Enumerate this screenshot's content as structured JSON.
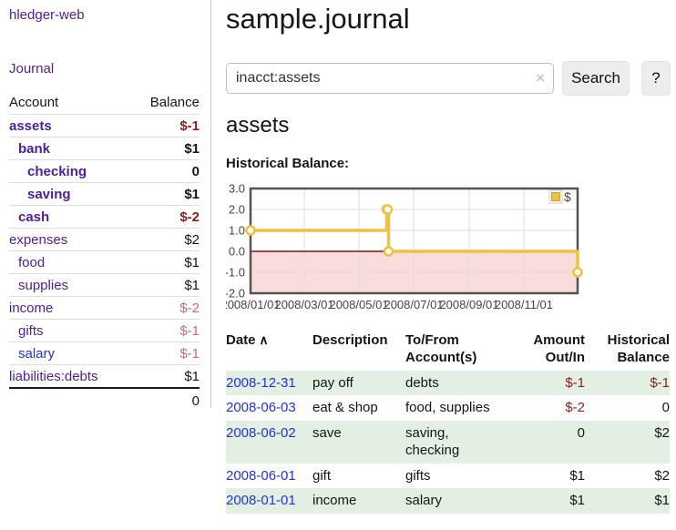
{
  "app": {
    "brand": "hledger-web",
    "journal_link": "Journal"
  },
  "sidebar": {
    "account_col": "Account",
    "balance_col": "Balance",
    "rows": [
      {
        "name": "assets",
        "balance": "$-1",
        "indent": 0,
        "bold": true,
        "balance_class": "neg-strong",
        "link": "purple"
      },
      {
        "name": "bank",
        "balance": "$1",
        "indent": 1,
        "bold": true,
        "balance_class": "",
        "link": "purple"
      },
      {
        "name": "checking",
        "balance": "0",
        "indent": 2,
        "bold": true,
        "balance_class": "",
        "link": "purple"
      },
      {
        "name": "saving",
        "balance": "$1",
        "indent": 2,
        "bold": true,
        "balance_class": "",
        "link": "purple"
      },
      {
        "name": "cash",
        "balance": "$-2",
        "indent": 1,
        "bold": true,
        "balance_class": "neg-strong",
        "link": "purple"
      },
      {
        "name": "expenses",
        "balance": "$2",
        "indent": 0,
        "bold": false,
        "balance_class": "",
        "link": "purple"
      },
      {
        "name": "food",
        "balance": "$1",
        "indent": 1,
        "bold": false,
        "balance_class": "",
        "link": "purple"
      },
      {
        "name": "supplies",
        "balance": "$1",
        "indent": 1,
        "bold": false,
        "balance_class": "",
        "link": "purple"
      },
      {
        "name": "income",
        "balance": "$-2",
        "indent": 0,
        "bold": false,
        "balance_class": "neg-soft",
        "link": "purple"
      },
      {
        "name": "gifts",
        "balance": "$-1",
        "indent": 1,
        "bold": false,
        "balance_class": "neg-soft",
        "link": "purple"
      },
      {
        "name": "salary",
        "balance": "$-1",
        "indent": 1,
        "bold": false,
        "balance_class": "neg-soft",
        "link": "blue"
      },
      {
        "name": "liabilities:debts",
        "balance": "$1",
        "indent": 0,
        "bold": false,
        "balance_class": "",
        "link": "purple"
      }
    ],
    "total": "0"
  },
  "main": {
    "title": "sample.journal",
    "account_title": "assets",
    "chart_heading": "Historical Balance:"
  },
  "search": {
    "value": "inacct:assets",
    "clear_icon": "×",
    "search_button": "Search",
    "help_button": "?"
  },
  "chart_data": {
    "type": "line",
    "title": "Historical Balance:",
    "x": [
      "2008-01-01",
      "2008-06-01",
      "2008-06-02",
      "2008-06-03",
      "2008-12-31"
    ],
    "series": [
      {
        "name": "$",
        "color": "#edc240",
        "steps": true,
        "values": [
          1.0,
          2.0,
          2.0,
          0.0,
          -1.0
        ]
      }
    ],
    "xlim": [
      "2008-01-01",
      "2008-12-31"
    ],
    "ylim": [
      -2.0,
      3.0
    ],
    "x_ticks": [
      "2008/01/01",
      "2008/03/01",
      "2008/05/01",
      "2008/07/01",
      "2008/09/01",
      "2008/11/01"
    ],
    "y_ticks": [
      3.0,
      2.0,
      1.0,
      0.0,
      -1.0,
      -2.0
    ],
    "legend": {
      "label": "$",
      "position": "top-right"
    },
    "grid": true,
    "zero_line_color": "#8b1010",
    "negative_fill": "#fbdcdc",
    "border_color": "#545454"
  },
  "register": {
    "columns": [
      {
        "lines": [
          "Date"
        ],
        "align": "left",
        "sortable": true,
        "sort_icon": "∧"
      },
      {
        "lines": [
          "Description"
        ],
        "align": "left",
        "sortable": false,
        "sort_icon": ""
      },
      {
        "lines": [
          "To/From",
          "Account(s)"
        ],
        "align": "left",
        "sortable": false,
        "sort_icon": ""
      },
      {
        "lines": [
          "Amount",
          "Out/In"
        ],
        "align": "right",
        "sortable": false,
        "sort_icon": ""
      },
      {
        "lines": [
          "Historical",
          "Balance"
        ],
        "align": "right",
        "sortable": false,
        "sort_icon": ""
      }
    ],
    "rows": [
      {
        "date": "2008-12-31",
        "description": "pay off",
        "accounts": [
          "debts"
        ],
        "amount": "$-1",
        "amount_negative": true,
        "balance": "$-1",
        "balance_negative": true,
        "shaded": true
      },
      {
        "date": "2008-06-03",
        "description": "eat & shop",
        "accounts": [
          "food, supplies"
        ],
        "amount": "$-2",
        "amount_negative": true,
        "balance": "0",
        "balance_negative": false,
        "shaded": false
      },
      {
        "date": "2008-06-02",
        "description": "save",
        "accounts": [
          "saving,",
          "checking"
        ],
        "amount": "0",
        "amount_negative": false,
        "balance": "$2",
        "balance_negative": false,
        "shaded": true
      },
      {
        "date": "2008-06-01",
        "description": "gift",
        "accounts": [
          "gifts"
        ],
        "amount": "$1",
        "amount_negative": false,
        "balance": "$2",
        "balance_negative": false,
        "shaded": false
      },
      {
        "date": "2008-01-01",
        "description": "income",
        "accounts": [
          "salary"
        ],
        "amount": "$1",
        "amount_negative": false,
        "balance": "$1",
        "balance_negative": false,
        "shaded": true
      }
    ]
  },
  "colors": {
    "link_purple": "#4e1e99",
    "link_blue": "#2233dd",
    "negative_strong": "#8b1e1e",
    "negative_soft": "#bd6f6f",
    "row_shade_green": "#e3efe3",
    "series_gold": "#edc240"
  }
}
